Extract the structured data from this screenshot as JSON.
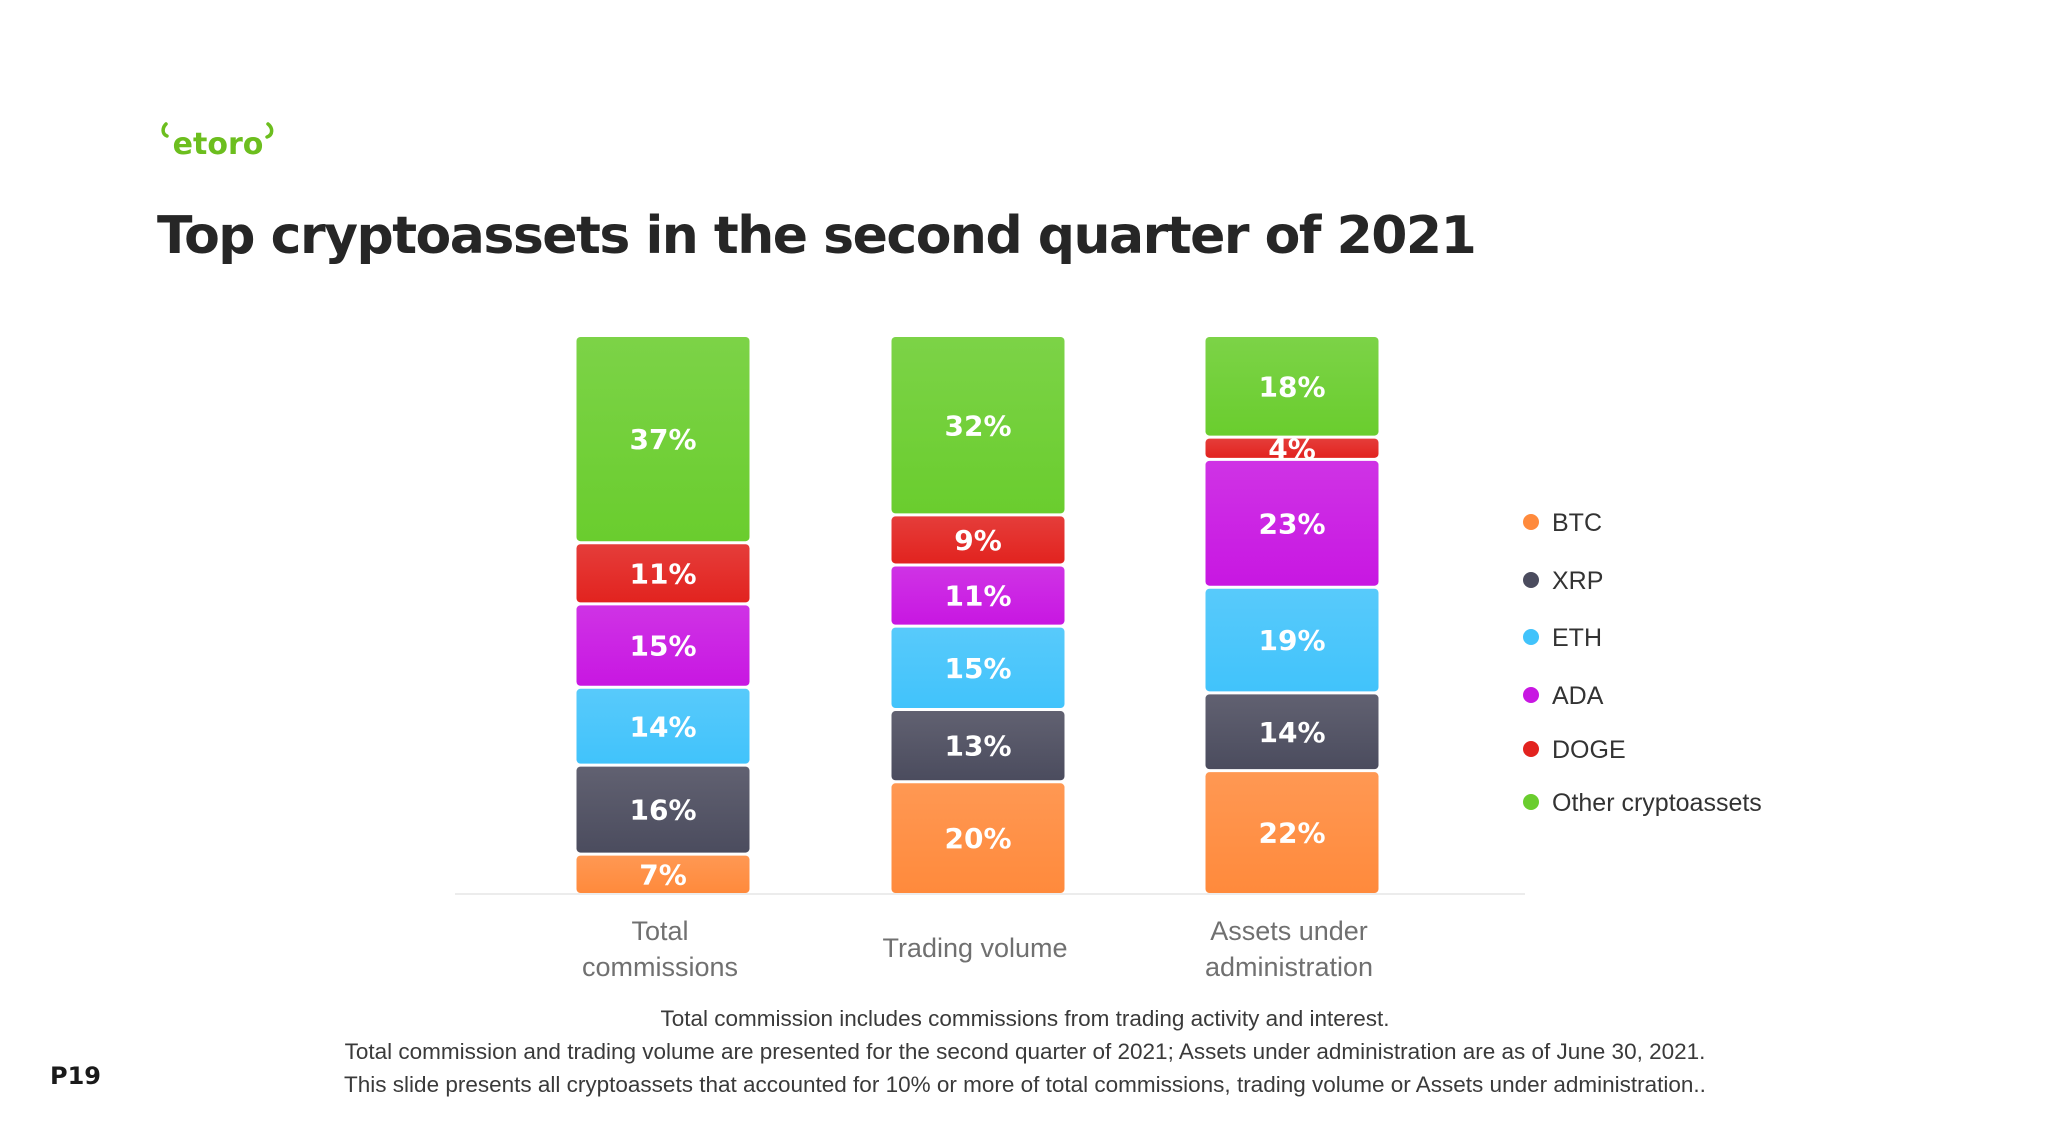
{
  "brand": {
    "logo_text": "etoro",
    "color": "#6cbe1e"
  },
  "title": "Top cryptoassets in the second quarter of 2021",
  "page_number": "P19",
  "footnotes": [
    "Total commission includes commissions from trading activity and interest.",
    "Total commission and trading volume are presented for the second quarter of 2021; Assets under administration are as of June 30, 2021.",
    "This slide presents all cryptoassets that accounted for 10% or more of total commissions, trading volume or Assets under administration.."
  ],
  "chart_data": {
    "type": "bar",
    "stacked": true,
    "orientation": "vertical",
    "unit": "%",
    "ylim": [
      0,
      100
    ],
    "grid": false,
    "legend_position": "right",
    "categories": [
      [
        "Total",
        "commissions"
      ],
      [
        "Trading volume"
      ],
      [
        "Assets under",
        "administration"
      ]
    ],
    "series": [
      {
        "name": "BTC",
        "color": "#ff8a3c",
        "values": [
          7,
          20,
          22
        ]
      },
      {
        "name": "XRP",
        "color": "#4b4c5e",
        "values": [
          16,
          13,
          14
        ]
      },
      {
        "name": "ETH",
        "color": "#41c3fb",
        "values": [
          14,
          15,
          19
        ]
      },
      {
        "name": "ADA",
        "color": "#c817e2",
        "values": [
          15,
          11,
          23
        ]
      },
      {
        "name": "DOGE",
        "color": "#e2231f",
        "values": [
          11,
          9,
          4
        ]
      },
      {
        "name": "Other cryptoassets",
        "color": "#6acd2e",
        "values": [
          37,
          32,
          18
        ]
      }
    ],
    "data_labels": [
      [
        "7%",
        "20%",
        "22%"
      ],
      [
        "16%",
        "13%",
        "14%"
      ],
      [
        "14%",
        "15%",
        "19%"
      ],
      [
        "15%",
        "11%",
        "23%"
      ],
      [
        "11%",
        "9%",
        "4%"
      ],
      [
        "37%",
        "32%",
        "18%"
      ]
    ]
  }
}
